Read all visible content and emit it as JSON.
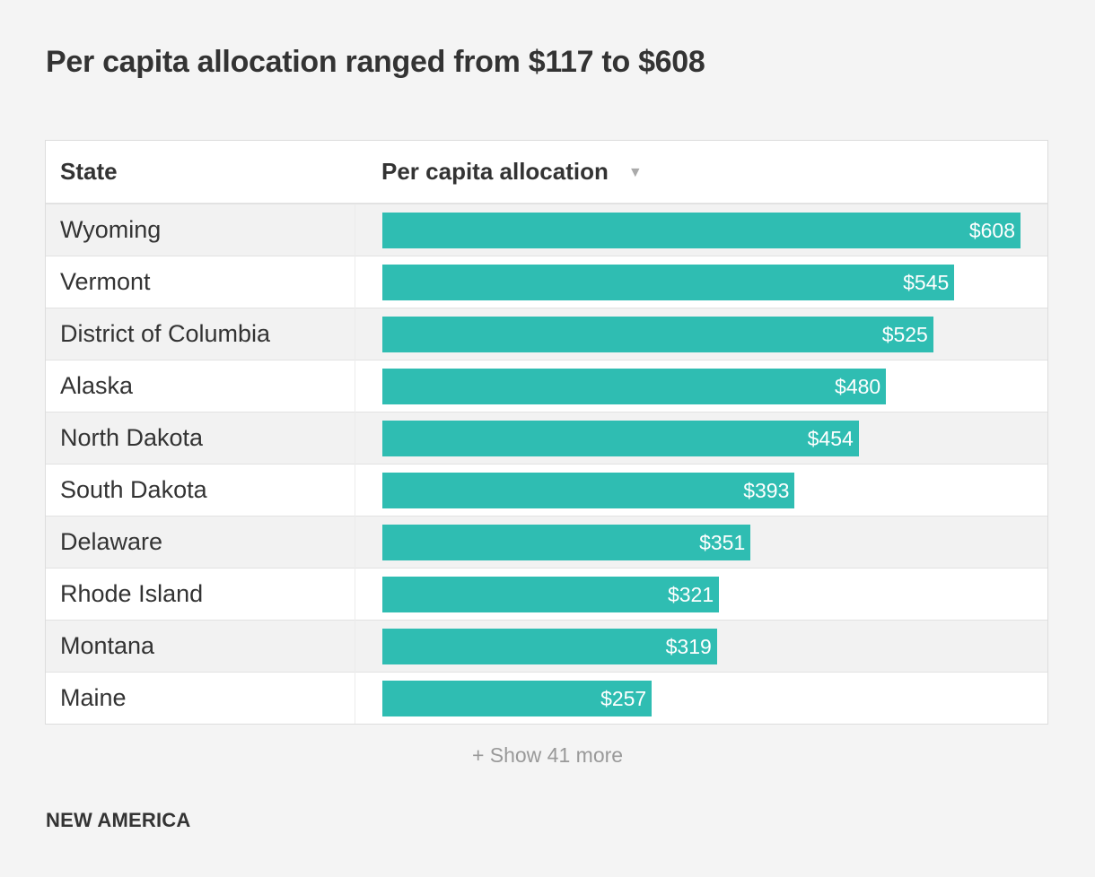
{
  "title": "Per capita allocation ranged from $117 to $608",
  "table": {
    "col_state": "State",
    "col_alloc": "Per capita allocation",
    "sort_indicator": "▼"
  },
  "chart_data": {
    "type": "bar",
    "orientation": "horizontal",
    "categories": [
      "Wyoming",
      "Vermont",
      "District of Columbia",
      "Alaska",
      "North Dakota",
      "South Dakota",
      "Delaware",
      "Rhode Island",
      "Montana",
      "Maine"
    ],
    "values": [
      608,
      545,
      525,
      480,
      454,
      393,
      351,
      321,
      319,
      257
    ],
    "labels": [
      "$608",
      "$545",
      "$525",
      "$480",
      "$454",
      "$393",
      "$351",
      "$321",
      "$319",
      "$257"
    ],
    "xlim": [
      0,
      608
    ],
    "bar_color": "#2fbdb2"
  },
  "show_more": "+ Show 41 more",
  "footer": {
    "logo": "NEW AMERICA"
  }
}
